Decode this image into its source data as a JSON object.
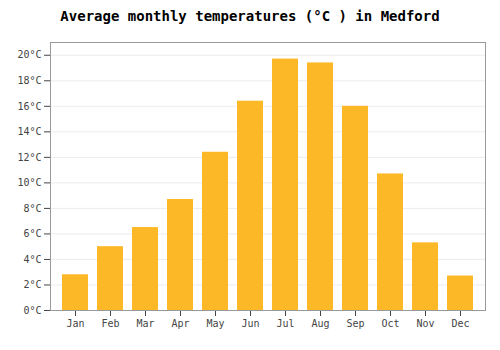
{
  "chart_data": {
    "type": "bar",
    "title": "Average monthly temperatures (°C ) in Medford",
    "categories": [
      "Jan",
      "Feb",
      "Mar",
      "Apr",
      "May",
      "Jun",
      "Jul",
      "Aug",
      "Sep",
      "Oct",
      "Nov",
      "Dec"
    ],
    "values": [
      2.8,
      5.0,
      6.5,
      8.7,
      12.4,
      16.4,
      19.7,
      19.4,
      16.0,
      10.7,
      5.3,
      2.7
    ],
    "color": "#FDB827",
    "ylim": [
      0,
      21
    ],
    "yticks": [
      {
        "value": 0,
        "label": "0°C"
      },
      {
        "value": 2,
        "label": "2°C"
      },
      {
        "value": 4,
        "label": "4°C"
      },
      {
        "value": 6,
        "label": "6°C"
      },
      {
        "value": 8,
        "label": "8°C"
      },
      {
        "value": 10,
        "label": "10°C"
      },
      {
        "value": 12,
        "label": "12°C"
      },
      {
        "value": 14,
        "label": "14°C"
      },
      {
        "value": 16,
        "label": "16°C"
      },
      {
        "value": 18,
        "label": "18°C"
      },
      {
        "value": 20,
        "label": "20°C"
      }
    ],
    "grid": true
  }
}
